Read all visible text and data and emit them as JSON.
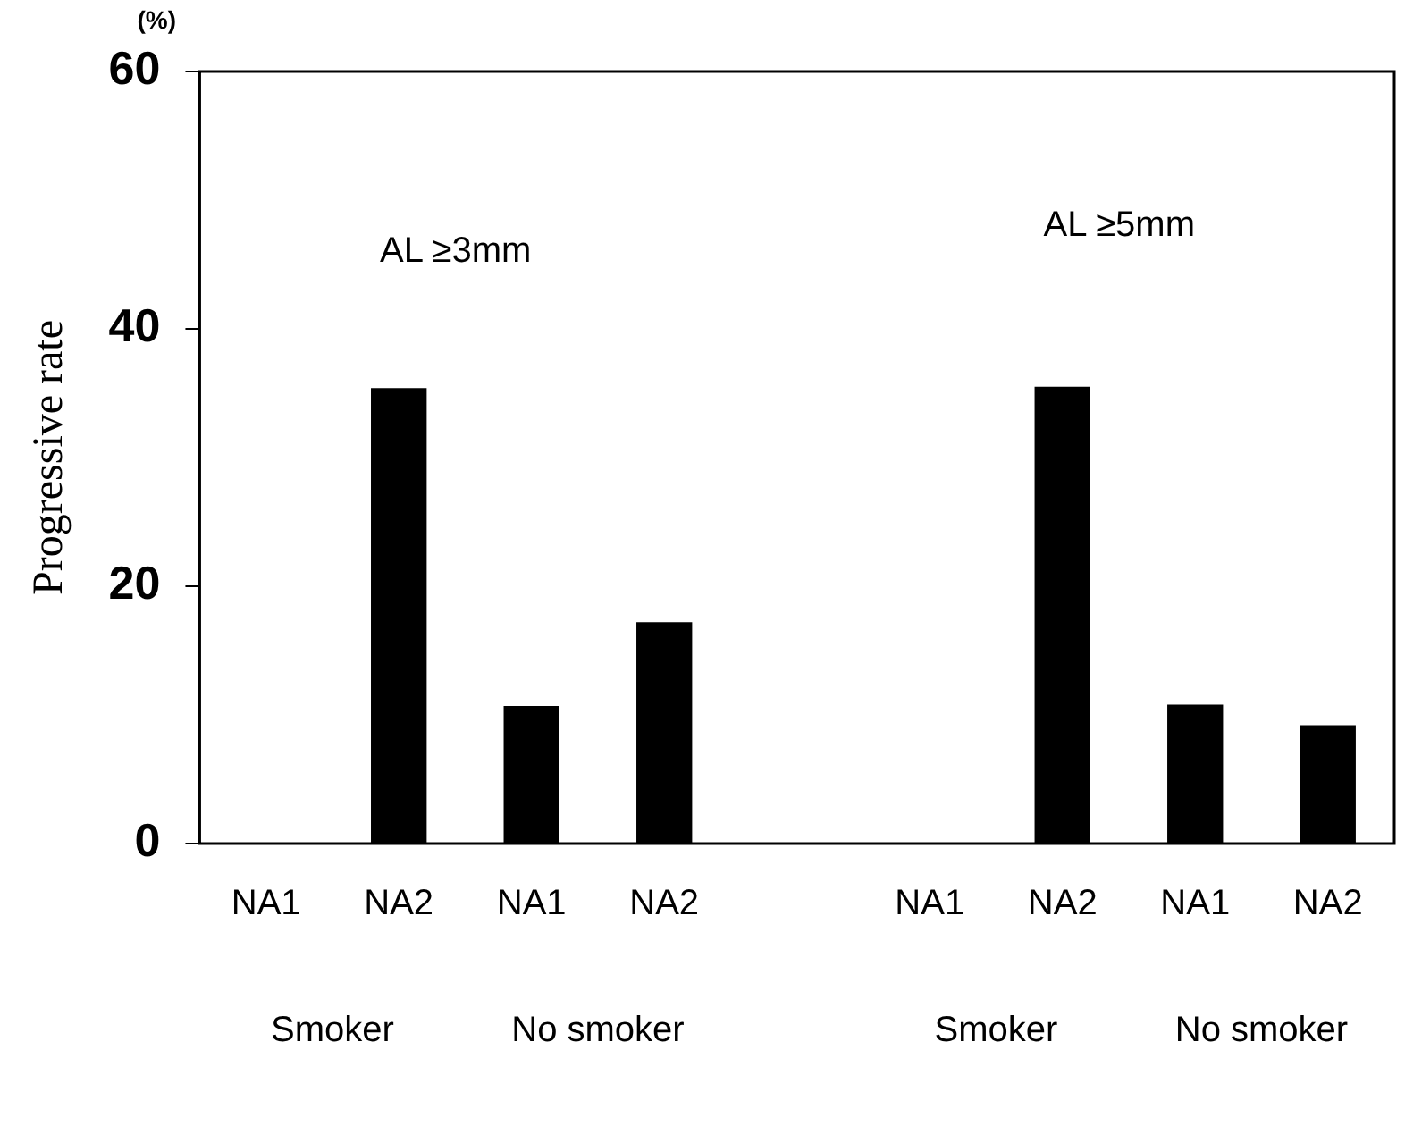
{
  "chart_data": {
    "type": "bar",
    "ylabel": "Progressive rate",
    "categories": [
      "NA1",
      "NA2",
      "NA1",
      "NA2",
      null,
      "NA1",
      "NA2",
      "NA1",
      "NA2"
    ],
    "values": [
      0,
      35.4,
      10.7,
      17.2,
      null,
      0,
      35.5,
      10.8,
      9.2
    ],
    "color": "#000000",
    "ylim": [
      0,
      60
    ],
    "yticks": [
      0,
      20,
      40,
      60
    ],
    "grid": false,
    "legend": false,
    "annotations": [
      "(%)",
      "AL ≥3mm",
      "AL ≥5mm",
      "Smoker",
      "No smoker",
      "Smoker",
      "No smoker"
    ]
  }
}
